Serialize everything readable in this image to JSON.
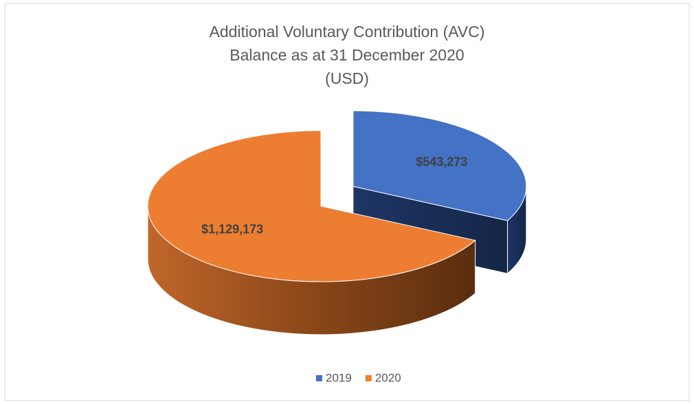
{
  "chart_data": {
    "type": "pie",
    "title": [
      "Additional Voluntary Contribution (AVC)",
      "Balance as at 31 December 2020",
      "(USD)"
    ],
    "categories": [
      "2019",
      "2020"
    ],
    "values": [
      543273,
      1129173
    ],
    "value_labels": [
      "$543,273",
      "$1,129,173"
    ],
    "colors": [
      "#4472c4",
      "#ed7d31"
    ],
    "legend": "bottom"
  }
}
